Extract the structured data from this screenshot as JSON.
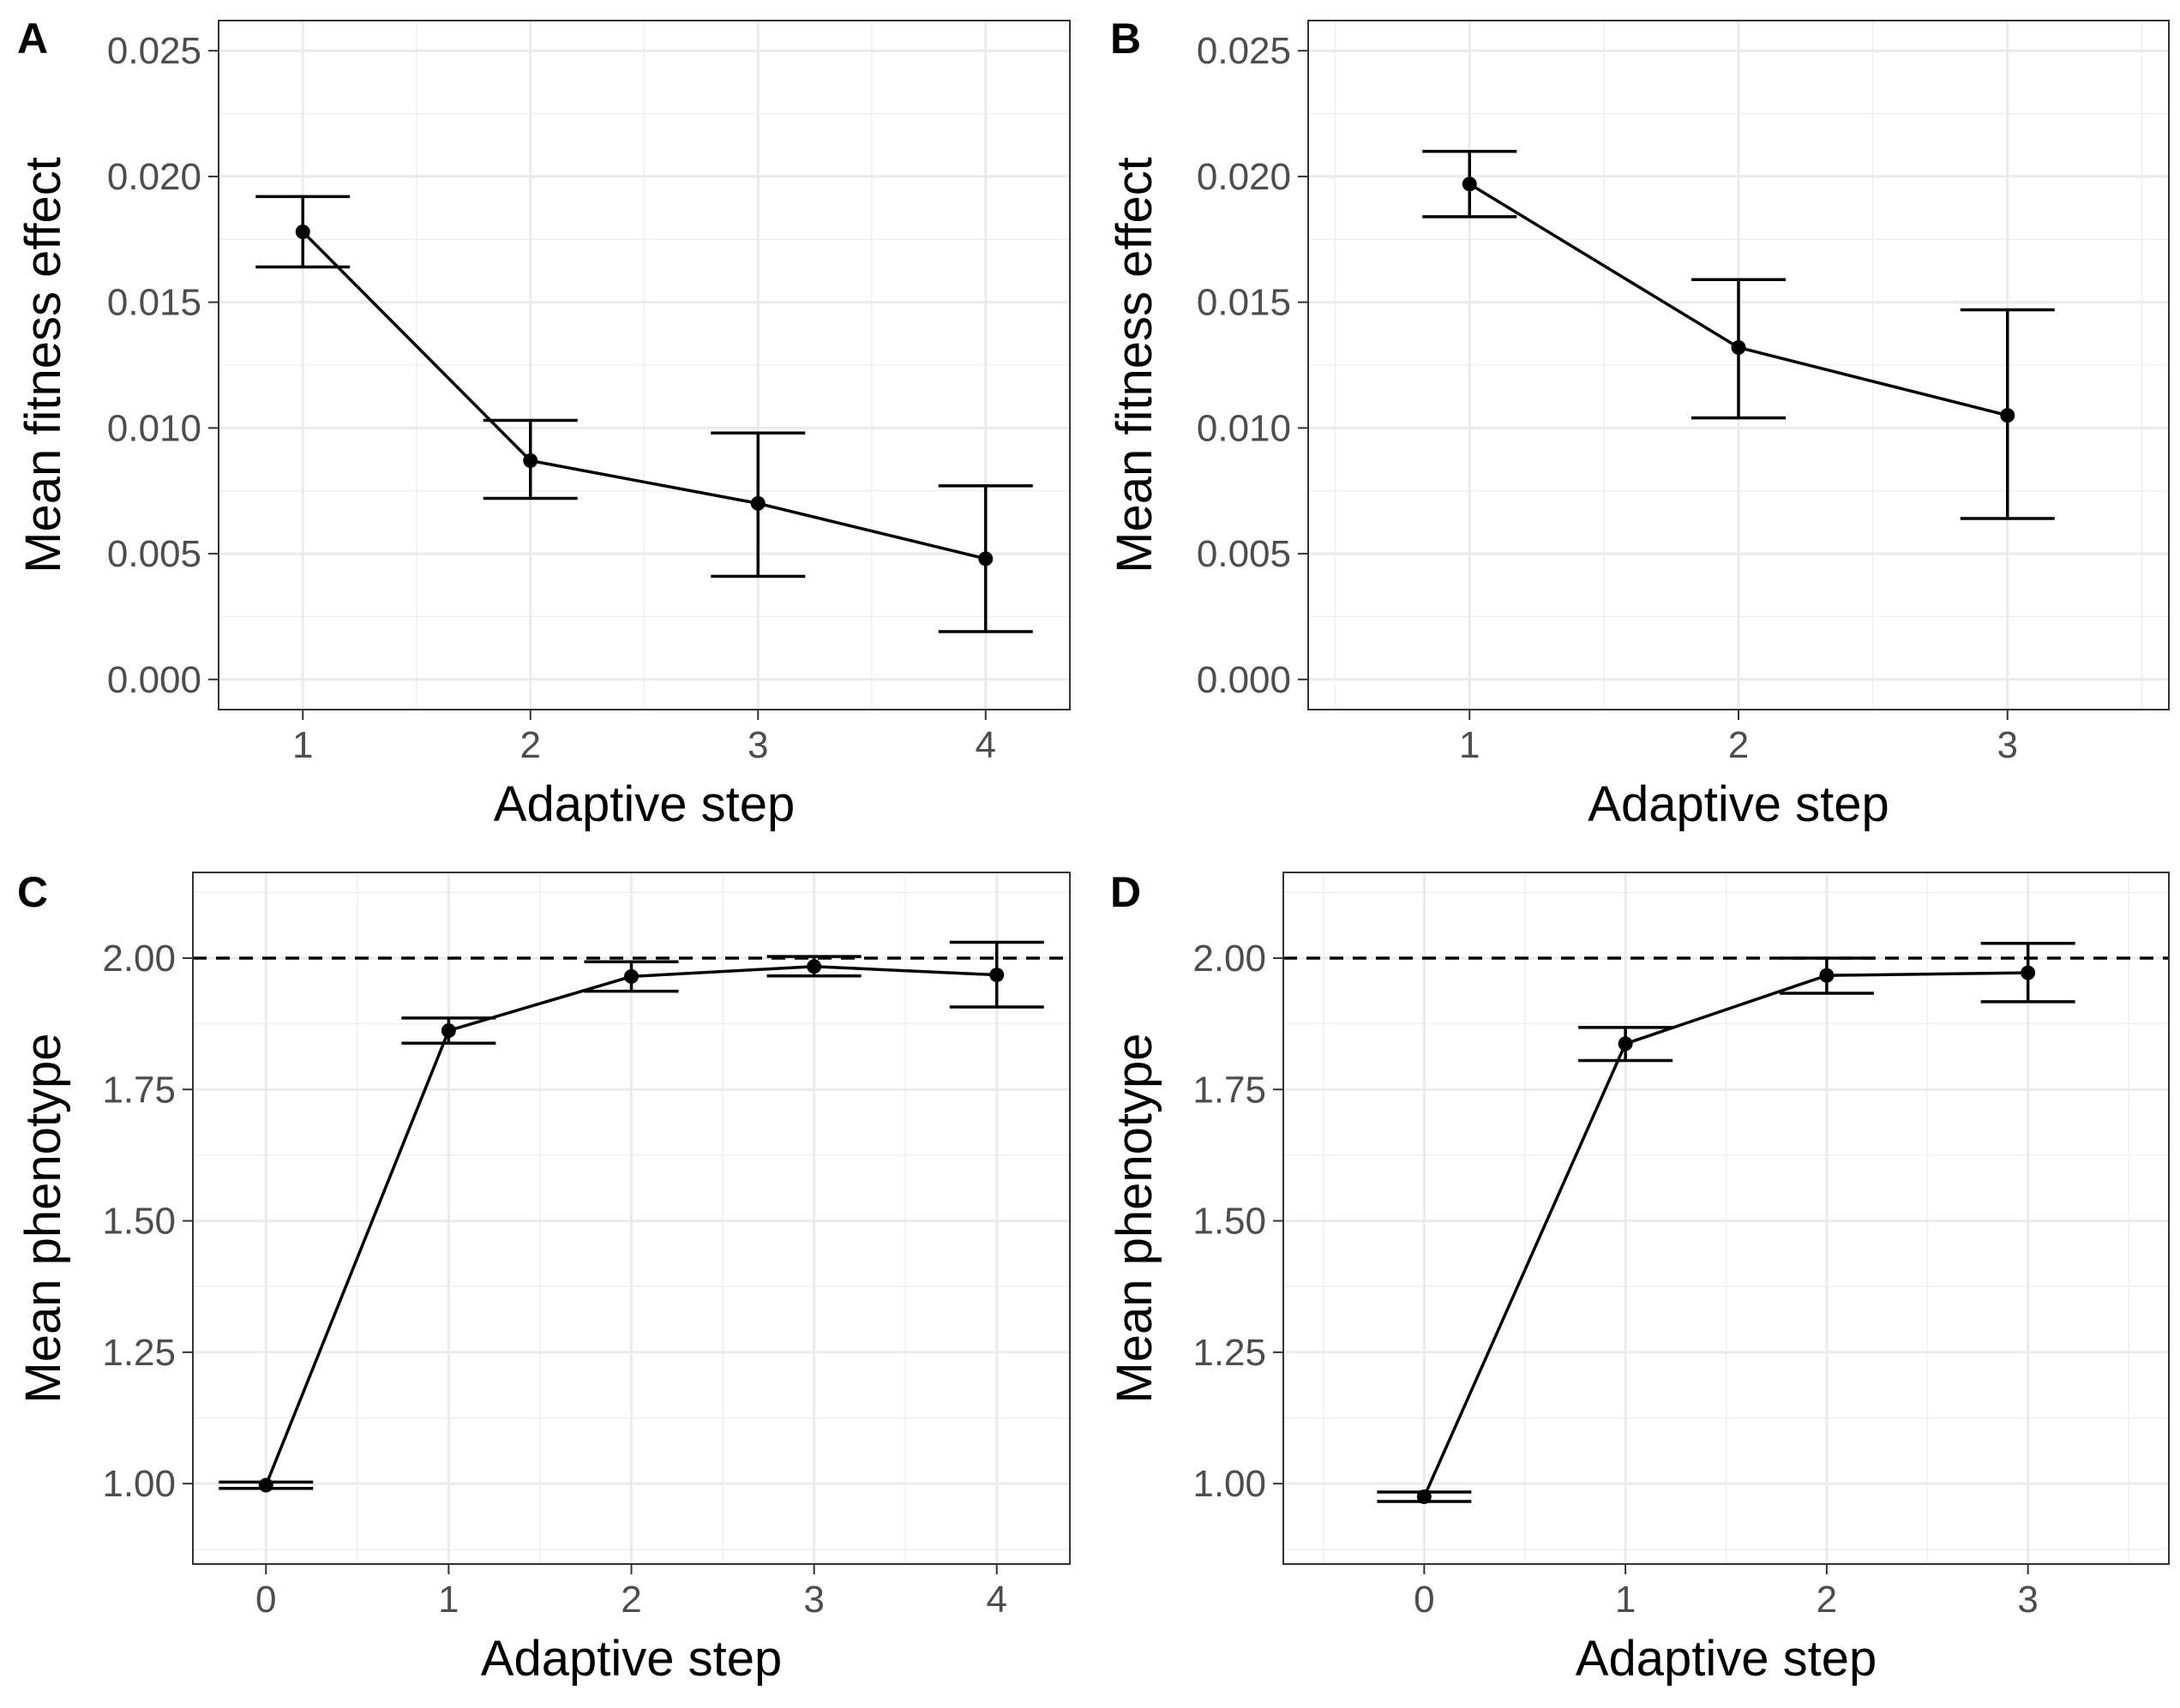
{
  "chart_data": [
    {
      "panel": "A",
      "type": "line",
      "xlabel": "Adaptive step",
      "ylabel": "Mean fitness effect",
      "x_ticks": [
        1,
        2,
        3,
        4
      ],
      "y_ticks": [
        "0.000",
        "0.005",
        "0.010",
        "0.015",
        "0.020",
        "0.025"
      ],
      "xlim": [
        0.63,
        4.37
      ],
      "ylim": [
        -0.0012,
        0.0262
      ],
      "grid": true,
      "points": [
        {
          "x": 1,
          "y": 0.0178,
          "ymin": 0.0164,
          "ymax": 0.0192
        },
        {
          "x": 2,
          "y": 0.0087,
          "ymin": 0.0072,
          "ymax": 0.0103
        },
        {
          "x": 3,
          "y": 0.007,
          "ymin": 0.0041,
          "ymax": 0.0098
        },
        {
          "x": 4,
          "y": 0.0048,
          "ymin": 0.0019,
          "ymax": 0.0077
        }
      ]
    },
    {
      "panel": "B",
      "type": "line",
      "xlabel": "Adaptive step",
      "ylabel": "Mean fitness effect",
      "x_ticks": [
        1,
        2,
        3
      ],
      "y_ticks": [
        "0.000",
        "0.005",
        "0.010",
        "0.015",
        "0.020",
        "0.025"
      ],
      "xlim": [
        0.4,
        3.6
      ],
      "ylim": [
        -0.0012,
        0.0262
      ],
      "grid": true,
      "points": [
        {
          "x": 1,
          "y": 0.0197,
          "ymin": 0.0184,
          "ymax": 0.021
        },
        {
          "x": 2,
          "y": 0.0132,
          "ymin": 0.0104,
          "ymax": 0.0159
        },
        {
          "x": 3,
          "y": 0.0105,
          "ymin": 0.0064,
          "ymax": 0.0147
        }
      ]
    },
    {
      "panel": "C",
      "type": "line",
      "xlabel": "Adaptive step",
      "ylabel": "Mean phenotype",
      "x_ticks": [
        0,
        1,
        2,
        3,
        4
      ],
      "y_ticks": [
        "1.00",
        "1.25",
        "1.50",
        "1.75",
        "2.00"
      ],
      "xlim": [
        -0.4,
        4.4
      ],
      "ylim": [
        0.847,
        2.163
      ],
      "grid": true,
      "reference_line_y": 2.0,
      "points": [
        {
          "x": 0,
          "y": 0.997,
          "ymin": 0.991,
          "ymax": 1.003
        },
        {
          "x": 1,
          "y": 1.862,
          "ymin": 1.838,
          "ymax": 1.886
        },
        {
          "x": 2,
          "y": 1.965,
          "ymin": 1.937,
          "ymax": 1.993
        },
        {
          "x": 3,
          "y": 1.984,
          "ymin": 1.966,
          "ymax": 2.003
        },
        {
          "x": 4,
          "y": 1.968,
          "ymin": 1.907,
          "ymax": 2.03
        }
      ]
    },
    {
      "panel": "D",
      "type": "line",
      "xlabel": "Adaptive step",
      "ylabel": "Mean phenotype",
      "x_ticks": [
        0,
        1,
        2,
        3
      ],
      "y_ticks": [
        "1.00",
        "1.25",
        "1.50",
        "1.75",
        "2.00"
      ],
      "xlim": [
        -0.7,
        3.7
      ],
      "ylim": [
        0.847,
        2.163
      ],
      "grid": true,
      "reference_line_y": 2.0,
      "points": [
        {
          "x": 0,
          "y": 0.975,
          "ymin": 0.966,
          "ymax": 0.984
        },
        {
          "x": 1,
          "y": 1.837,
          "ymin": 1.805,
          "ymax": 1.868
        },
        {
          "x": 2,
          "y": 1.967,
          "ymin": 1.933,
          "ymax": 2.0
        },
        {
          "x": 3,
          "y": 1.972,
          "ymin": 1.917,
          "ymax": 2.028
        }
      ]
    }
  ]
}
